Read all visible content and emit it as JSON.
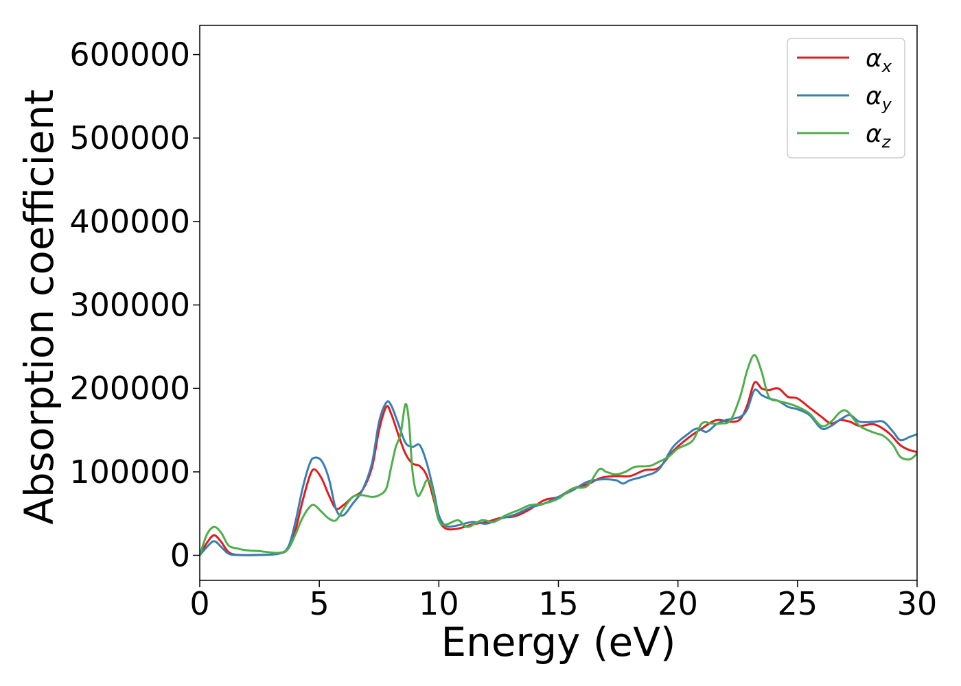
{
  "chart_data": {
    "type": "line",
    "title": "",
    "xlabel": "Energy (eV)",
    "ylabel": "Absorption coefficient",
    "xlim": [
      0,
      30
    ],
    "ylim": [
      -30000,
      635000
    ],
    "xticks": [
      0,
      5,
      10,
      15,
      20,
      25,
      30
    ],
    "yticks": [
      0,
      100000,
      200000,
      300000,
      400000,
      500000,
      600000
    ],
    "grid": false,
    "legend_position": "top-right",
    "series": [
      {
        "name": "α",
        "subscript": "x",
        "color": "#e41a1c",
        "points": [
          [
            0,
            0
          ],
          [
            0.3,
            15000
          ],
          [
            0.6,
            24000
          ],
          [
            0.9,
            16000
          ],
          [
            1.2,
            4000
          ],
          [
            1.6,
            500
          ],
          [
            2.5,
            500
          ],
          [
            3.3,
            2000
          ],
          [
            3.7,
            8000
          ],
          [
            4.0,
            30000
          ],
          [
            4.3,
            65000
          ],
          [
            4.6,
            95000
          ],
          [
            4.8,
            103000
          ],
          [
            5.1,
            92000
          ],
          [
            5.4,
            72000
          ],
          [
            5.7,
            56000
          ],
          [
            6.0,
            60000
          ],
          [
            6.4,
            70000
          ],
          [
            6.8,
            78000
          ],
          [
            7.2,
            105000
          ],
          [
            7.5,
            150000
          ],
          [
            7.8,
            178000
          ],
          [
            8.0,
            170000
          ],
          [
            8.3,
            145000
          ],
          [
            8.6,
            122000
          ],
          [
            8.9,
            110000
          ],
          [
            9.2,
            107000
          ],
          [
            9.5,
            95000
          ],
          [
            9.8,
            65000
          ],
          [
            10.0,
            42000
          ],
          [
            10.3,
            32000
          ],
          [
            10.8,
            32000
          ],
          [
            11.4,
            37000
          ],
          [
            12.0,
            40000
          ],
          [
            12.6,
            45000
          ],
          [
            13.2,
            47000
          ],
          [
            13.8,
            55000
          ],
          [
            14.4,
            66000
          ],
          [
            15.0,
            70000
          ],
          [
            15.6,
            80000
          ],
          [
            16.2,
            85000
          ],
          [
            16.8,
            93000
          ],
          [
            17.4,
            95000
          ],
          [
            18.0,
            95000
          ],
          [
            18.6,
            102000
          ],
          [
            19.2,
            105000
          ],
          [
            19.8,
            125000
          ],
          [
            20.4,
            140000
          ],
          [
            21.0,
            152000
          ],
          [
            21.6,
            162000
          ],
          [
            22.2,
            160000
          ],
          [
            22.6,
            163000
          ],
          [
            22.9,
            180000
          ],
          [
            23.2,
            207000
          ],
          [
            23.5,
            200000
          ],
          [
            23.8,
            198000
          ],
          [
            24.2,
            200000
          ],
          [
            24.6,
            190000
          ],
          [
            25.0,
            188000
          ],
          [
            25.5,
            177000
          ],
          [
            26.0,
            166000
          ],
          [
            26.4,
            158000
          ],
          [
            26.8,
            162000
          ],
          [
            27.2,
            160000
          ],
          [
            27.6,
            155000
          ],
          [
            28.2,
            157000
          ],
          [
            28.8,
            147000
          ],
          [
            29.3,
            132000
          ],
          [
            29.7,
            126000
          ],
          [
            30,
            124000
          ]
        ]
      },
      {
        "name": "α",
        "subscript": "y",
        "color": "#377eb8",
        "points": [
          [
            0,
            0
          ],
          [
            0.3,
            10000
          ],
          [
            0.6,
            17000
          ],
          [
            0.9,
            10000
          ],
          [
            1.2,
            2000
          ],
          [
            1.6,
            300
          ],
          [
            2.5,
            300
          ],
          [
            3.3,
            2000
          ],
          [
            3.7,
            10000
          ],
          [
            4.0,
            40000
          ],
          [
            4.3,
            80000
          ],
          [
            4.6,
            110000
          ],
          [
            4.8,
            117000
          ],
          [
            5.1,
            113000
          ],
          [
            5.4,
            92000
          ],
          [
            5.7,
            55000
          ],
          [
            6.0,
            48000
          ],
          [
            6.4,
            62000
          ],
          [
            6.8,
            78000
          ],
          [
            7.2,
            110000
          ],
          [
            7.5,
            160000
          ],
          [
            7.8,
            183000
          ],
          [
            8.0,
            180000
          ],
          [
            8.3,
            158000
          ],
          [
            8.6,
            135000
          ],
          [
            8.9,
            130000
          ],
          [
            9.2,
            132000
          ],
          [
            9.5,
            110000
          ],
          [
            9.8,
            75000
          ],
          [
            10.0,
            48000
          ],
          [
            10.3,
            35000
          ],
          [
            10.8,
            36000
          ],
          [
            11.4,
            40000
          ],
          [
            12.0,
            38000
          ],
          [
            12.6,
            44000
          ],
          [
            13.2,
            49000
          ],
          [
            13.8,
            57000
          ],
          [
            14.4,
            62000
          ],
          [
            15.0,
            70000
          ],
          [
            15.6,
            78000
          ],
          [
            16.2,
            88000
          ],
          [
            16.8,
            91000
          ],
          [
            17.4,
            90000
          ],
          [
            17.7,
            86000
          ],
          [
            18.0,
            90000
          ],
          [
            18.6,
            95000
          ],
          [
            19.2,
            103000
          ],
          [
            19.8,
            130000
          ],
          [
            20.4,
            145000
          ],
          [
            20.8,
            152000
          ],
          [
            21.2,
            148000
          ],
          [
            21.6,
            157000
          ],
          [
            22.0,
            162000
          ],
          [
            22.6,
            166000
          ],
          [
            22.9,
            175000
          ],
          [
            23.2,
            198000
          ],
          [
            23.5,
            192000
          ],
          [
            23.8,
            188000
          ],
          [
            24.2,
            185000
          ],
          [
            24.6,
            178000
          ],
          [
            25.0,
            175000
          ],
          [
            25.5,
            168000
          ],
          [
            26.0,
            152000
          ],
          [
            26.4,
            155000
          ],
          [
            26.8,
            163000
          ],
          [
            27.2,
            168000
          ],
          [
            27.6,
            160000
          ],
          [
            28.2,
            160000
          ],
          [
            28.6,
            160000
          ],
          [
            29.0,
            148000
          ],
          [
            29.3,
            138000
          ],
          [
            29.7,
            142000
          ],
          [
            30,
            145000
          ]
        ]
      },
      {
        "name": "α",
        "subscript": "z",
        "color": "#4daf4a",
        "points": [
          [
            0,
            0
          ],
          [
            0.3,
            25000
          ],
          [
            0.6,
            34000
          ],
          [
            0.9,
            27000
          ],
          [
            1.2,
            12000
          ],
          [
            1.6,
            8000
          ],
          [
            2.0,
            6000
          ],
          [
            2.5,
            5000
          ],
          [
            3.3,
            3000
          ],
          [
            3.7,
            8000
          ],
          [
            4.0,
            25000
          ],
          [
            4.3,
            45000
          ],
          [
            4.6,
            58000
          ],
          [
            4.8,
            60000
          ],
          [
            5.1,
            52000
          ],
          [
            5.4,
            44000
          ],
          [
            5.7,
            42000
          ],
          [
            6.0,
            55000
          ],
          [
            6.4,
            70000
          ],
          [
            6.8,
            72000
          ],
          [
            7.2,
            70000
          ],
          [
            7.5,
            72000
          ],
          [
            7.8,
            80000
          ],
          [
            8.0,
            105000
          ],
          [
            8.2,
            130000
          ],
          [
            8.4,
            145000
          ],
          [
            8.6,
            181000
          ],
          [
            8.75,
            160000
          ],
          [
            8.9,
            100000
          ],
          [
            9.1,
            72000
          ],
          [
            9.3,
            78000
          ],
          [
            9.5,
            90000
          ],
          [
            9.7,
            82000
          ],
          [
            10.0,
            42000
          ],
          [
            10.3,
            37000
          ],
          [
            10.8,
            42000
          ],
          [
            11.2,
            34000
          ],
          [
            11.8,
            42000
          ],
          [
            12.3,
            40000
          ],
          [
            12.8,
            48000
          ],
          [
            13.4,
            55000
          ],
          [
            13.8,
            60000
          ],
          [
            14.4,
            62000
          ],
          [
            15.0,
            68000
          ],
          [
            15.6,
            80000
          ],
          [
            16.2,
            83000
          ],
          [
            16.7,
            103000
          ],
          [
            17.0,
            100000
          ],
          [
            17.4,
            97000
          ],
          [
            17.8,
            100000
          ],
          [
            18.2,
            106000
          ],
          [
            18.8,
            107000
          ],
          [
            19.2,
            112000
          ],
          [
            19.6,
            118000
          ],
          [
            20.0,
            128000
          ],
          [
            20.6,
            137000
          ],
          [
            21.0,
            158000
          ],
          [
            21.4,
            158000
          ],
          [
            21.8,
            158000
          ],
          [
            22.2,
            162000
          ],
          [
            22.6,
            190000
          ],
          [
            22.9,
            222000
          ],
          [
            23.2,
            240000
          ],
          [
            23.5,
            220000
          ],
          [
            23.8,
            190000
          ],
          [
            24.2,
            185000
          ],
          [
            24.6,
            182000
          ],
          [
            25.0,
            178000
          ],
          [
            25.5,
            170000
          ],
          [
            26.0,
            155000
          ],
          [
            26.4,
            160000
          ],
          [
            26.8,
            172000
          ],
          [
            27.1,
            172000
          ],
          [
            27.6,
            155000
          ],
          [
            28.2,
            147000
          ],
          [
            28.6,
            143000
          ],
          [
            29.0,
            132000
          ],
          [
            29.3,
            118000
          ],
          [
            29.7,
            115000
          ],
          [
            30,
            122000
          ]
        ]
      }
    ]
  }
}
